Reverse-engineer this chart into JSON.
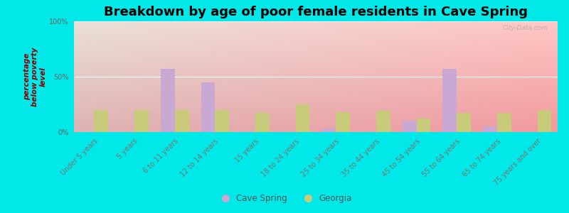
{
  "title": "Breakdown by age of poor female residents in Cave Spring",
  "categories": [
    "Under 5 years",
    "5 years",
    "6 to 11 years",
    "12 to 14 years",
    "15 years",
    "18 to 24 years",
    "25 to 34 years",
    "35 to 44 years",
    "45 to 54 years",
    "55 to 64 years",
    "65 to 74 years",
    "75 years and over"
  ],
  "cave_spring": [
    0,
    0,
    57,
    45,
    0,
    0,
    3,
    0,
    10,
    57,
    5,
    0
  ],
  "georgia": [
    20,
    20,
    20,
    20,
    17,
    25,
    18,
    19,
    12,
    17,
    17,
    20
  ],
  "cave_spring_color": "#c9a8d4",
  "georgia_color": "#c8cc7a",
  "background_color": "#00e8e8",
  "ylabel": "percentage\nbelow poverty\nlevel",
  "ylim": [
    0,
    100
  ],
  "yticks": [
    0,
    50,
    100
  ],
  "ytick_labels": [
    "0%",
    "50%",
    "100%"
  ],
  "bar_width": 0.35,
  "title_fontsize": 13,
  "axis_label_fontsize": 7.5,
  "tick_fontsize": 7,
  "legend_labels": [
    "Cave Spring",
    "Georgia"
  ],
  "watermark": "City-Data.com"
}
